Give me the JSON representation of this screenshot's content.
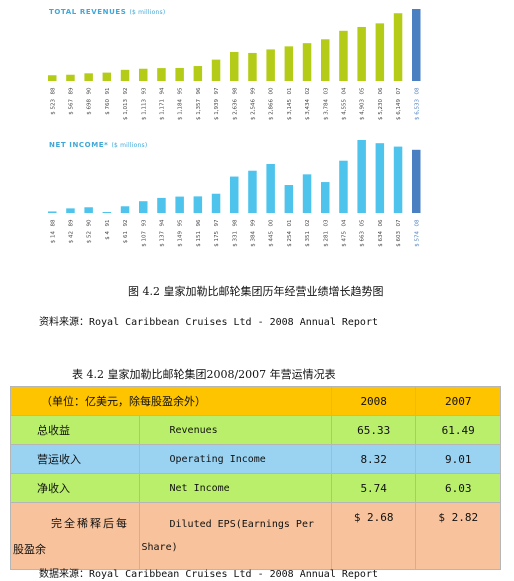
{
  "chart_data": [
    {
      "type": "bar",
      "title": "TOTAL REVENUES",
      "unit_label": "($ millions)",
      "categories": [
        "88",
        "89",
        "90",
        "91",
        "92",
        "93",
        "94",
        "95",
        "96",
        "97",
        "98",
        "99",
        "00",
        "01",
        "02",
        "03",
        "04",
        "05",
        "06",
        "07",
        "08"
      ],
      "value_labels": [
        "$ 523",
        "$ 567",
        "$ 698",
        "$ 760",
        "$ 1,013",
        "$ 1,113",
        "$ 1,171",
        "$ 1,184",
        "$ 1,357",
        "$ 1,939",
        "$ 2,636",
        "$ 2,546",
        "$ 2,866",
        "$ 3,145",
        "$ 3,434",
        "$ 3,784",
        "$ 4,555",
        "$ 4,903",
        "$ 5,230",
        "$ 6,149",
        "$ 6,533"
      ],
      "values": [
        523,
        567,
        698,
        760,
        1013,
        1113,
        1171,
        1184,
        1357,
        1939,
        2636,
        2546,
        2866,
        3145,
        3434,
        3784,
        4555,
        4903,
        5230,
        6149,
        6533
      ],
      "colors": {
        "bar": "#b4cc17",
        "highlight": "#4a7fc2"
      },
      "highlight_category": "08"
    },
    {
      "type": "bar",
      "title": "NET INCOME*",
      "unit_label": "($ millions)",
      "categories": [
        "88",
        "89",
        "90",
        "91",
        "92",
        "93",
        "94",
        "95",
        "96",
        "97",
        "98",
        "99",
        "00",
        "01",
        "02",
        "03",
        "04",
        "05",
        "06",
        "07",
        "08"
      ],
      "value_labels": [
        "$ 14",
        "$ 42",
        "$ 52",
        "$ 4",
        "$ 61",
        "$ 107",
        "$ 137",
        "$ 149",
        "$ 151",
        "$ 175",
        "$ 331",
        "$ 384",
        "$ 445",
        "$ 254",
        "$ 351",
        "$ 281",
        "$ 475",
        "$ 663",
        "$ 634",
        "$ 603",
        "$ 574"
      ],
      "values": [
        14,
        42,
        52,
        4,
        61,
        107,
        137,
        149,
        151,
        175,
        331,
        384,
        445,
        254,
        351,
        281,
        475,
        663,
        634,
        603,
        574
      ],
      "colors": {
        "bar": "#4ec3ec",
        "highlight": "#4a7fc2"
      },
      "highlight_category": "08"
    }
  ],
  "figure_caption": "图 4.2 皇家加勒比邮轮集团历年经营业绩增长趋势图",
  "figure_source": "资料来源：Royal Caribbean Cruises Ltd - 2008 Annual Report",
  "table_caption": "表 4.2 皇家加勒比邮轮集团2008/2007 年营运情况表",
  "table": {
    "header": {
      "label": "（单位：亿美元，除每股盈余外）",
      "col_2008": "2008",
      "col_2007": "2007"
    },
    "rows": [
      {
        "cn": "总收益",
        "en": "Revenues",
        "v2008": "65.33",
        "v2007": "61.49"
      },
      {
        "cn": "营运收入",
        "en": "Operating Income",
        "v2008": "8.32",
        "v2007": "9.01"
      },
      {
        "cn": "净收入",
        "en": "Net Income",
        "v2008": "5.74",
        "v2007": "6.03"
      },
      {
        "cn_line1": "完全稀释后每",
        "cn_line2": "股盈余",
        "en_line1": "Diluted EPS(Earnings Per",
        "en_line2": "Share)",
        "v2008": "$ 2.68",
        "v2007": "$ 2.82"
      }
    ]
  },
  "table_source": "数据来源：Royal Caribbean Cruises Ltd - 2008 Annual Report"
}
